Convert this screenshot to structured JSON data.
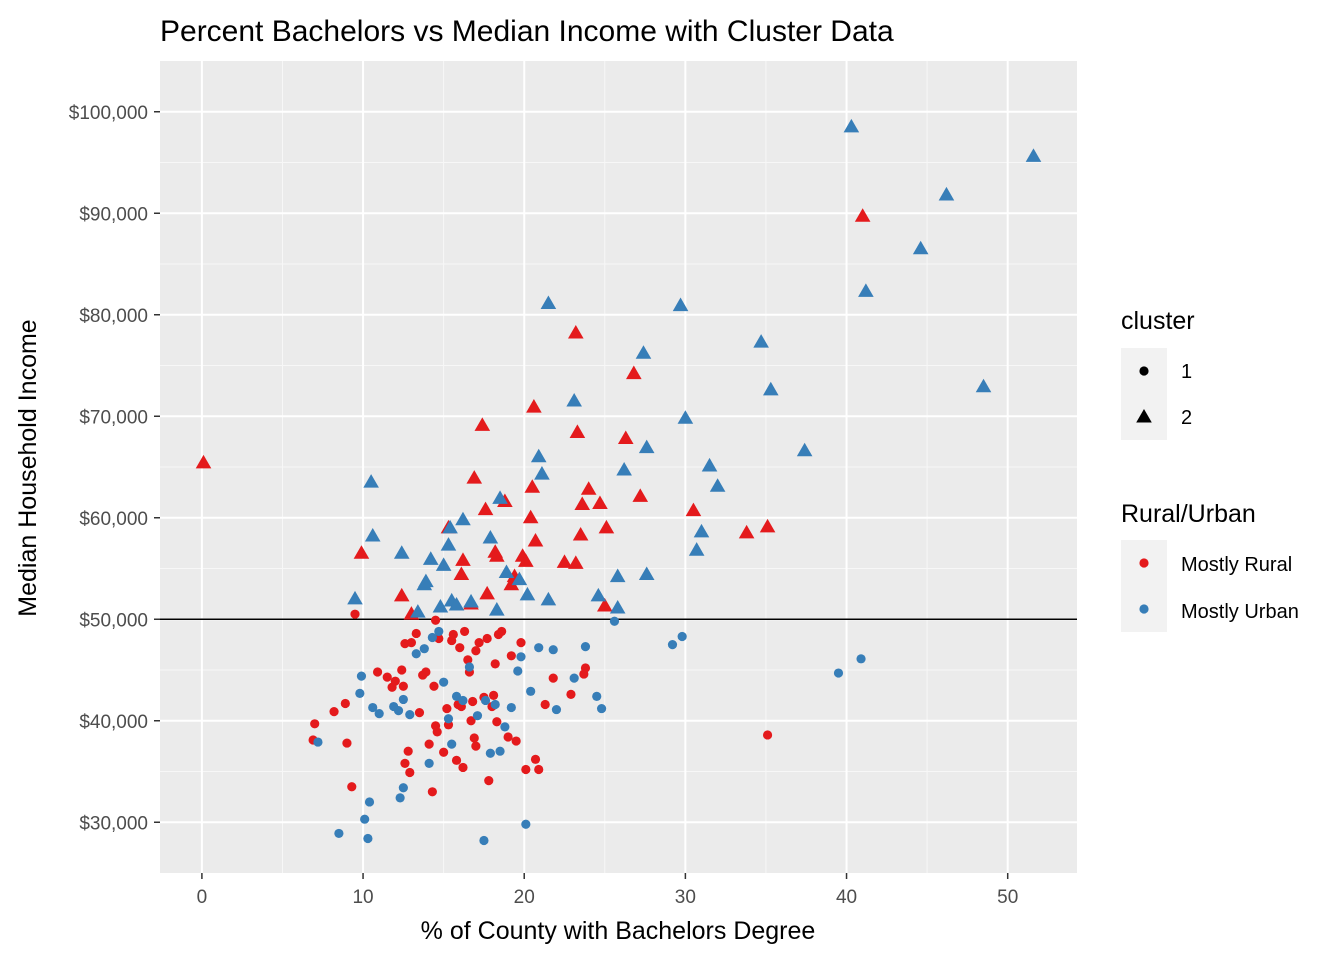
{
  "chart_data": {
    "type": "scatter",
    "title": "Percent Bachelors vs Median Income with Cluster Data",
    "xlabel": "% of County with Bachelors Degree",
    "ylabel": "Median Household Income",
    "xlim": [
      -2.6,
      54.3
    ],
    "ylim": [
      25000,
      105000
    ],
    "x_ticks": [
      0,
      10,
      20,
      30,
      40,
      50
    ],
    "x_tick_labels": [
      "0",
      "10",
      "20",
      "30",
      "40",
      "50"
    ],
    "y_ticks": [
      30000,
      40000,
      50000,
      60000,
      70000,
      80000,
      90000,
      100000
    ],
    "y_tick_labels": [
      "$30,000",
      "$40,000",
      "$50,000",
      "$60,000",
      "$70,000",
      "$80,000",
      "$90,000",
      "$100,000"
    ],
    "hline": 50000,
    "grid": true,
    "legend_placement": "right",
    "legends": [
      {
        "title": "cluster",
        "entries": [
          {
            "label": "1",
            "shape": "circle"
          },
          {
            "label": "2",
            "shape": "triangle"
          }
        ]
      },
      {
        "title": "Rural/Urban",
        "entries": [
          {
            "label": "Mostly Rural",
            "color": "#e41a1c"
          },
          {
            "label": "Mostly Urban",
            "color": "#377eb8"
          }
        ]
      }
    ],
    "series": [
      {
        "name": "Mostly Rural",
        "cluster": "1",
        "color": "#e41a1c",
        "shape": "circle",
        "points": [
          [
            7.0,
            39700
          ],
          [
            6.9,
            38100
          ],
          [
            8.2,
            40900
          ],
          [
            8.9,
            41700
          ],
          [
            9.0,
            37800
          ],
          [
            9.3,
            33500
          ],
          [
            9.5,
            50500
          ],
          [
            10.9,
            44800
          ],
          [
            11.5,
            44300
          ],
          [
            11.8,
            43300
          ],
          [
            12.0,
            43900
          ],
          [
            12.4,
            45000
          ],
          [
            12.5,
            43400
          ],
          [
            12.6,
            35800
          ],
          [
            12.8,
            37000
          ],
          [
            12.9,
            34900
          ],
          [
            12.6,
            47600
          ],
          [
            13.0,
            47700
          ],
          [
            13.3,
            48600
          ],
          [
            13.5,
            40800
          ],
          [
            13.7,
            44500
          ],
          [
            13.9,
            44800
          ],
          [
            14.1,
            37700
          ],
          [
            14.3,
            33000
          ],
          [
            14.4,
            43400
          ],
          [
            14.5,
            39500
          ],
          [
            14.6,
            38900
          ],
          [
            14.7,
            48100
          ],
          [
            14.5,
            49900
          ],
          [
            15.0,
            36900
          ],
          [
            15.2,
            41200
          ],
          [
            15.3,
            39600
          ],
          [
            15.5,
            47900
          ],
          [
            15.6,
            48500
          ],
          [
            15.8,
            36100
          ],
          [
            15.9,
            41600
          ],
          [
            16.1,
            41400
          ],
          [
            16.0,
            47200
          ],
          [
            16.2,
            35400
          ],
          [
            16.3,
            48800
          ],
          [
            16.5,
            46000
          ],
          [
            16.6,
            44800
          ],
          [
            16.7,
            40000
          ],
          [
            16.8,
            41900
          ],
          [
            16.9,
            38300
          ],
          [
            17.0,
            37500
          ],
          [
            17.0,
            46900
          ],
          [
            17.2,
            47700
          ],
          [
            17.5,
            42300
          ],
          [
            17.7,
            48100
          ],
          [
            17.8,
            34100
          ],
          [
            18.0,
            41400
          ],
          [
            18.1,
            42500
          ],
          [
            18.2,
            45600
          ],
          [
            18.3,
            39900
          ],
          [
            18.4,
            48500
          ],
          [
            18.6,
            48800
          ],
          [
            19.0,
            38400
          ],
          [
            19.2,
            46400
          ],
          [
            19.5,
            38000
          ],
          [
            19.8,
            47700
          ],
          [
            20.1,
            35200
          ],
          [
            20.7,
            36200
          ],
          [
            20.9,
            35200
          ],
          [
            21.3,
            41600
          ],
          [
            21.8,
            44200
          ],
          [
            22.9,
            42600
          ],
          [
            23.7,
            44600
          ],
          [
            23.8,
            45200
          ],
          [
            35.1,
            38600
          ]
        ]
      },
      {
        "name": "Mostly Urban",
        "cluster": "1",
        "color": "#377eb8",
        "shape": "circle",
        "points": [
          [
            7.2,
            37900
          ],
          [
            8.5,
            28900
          ],
          [
            9.8,
            42700
          ],
          [
            9.9,
            44400
          ],
          [
            10.1,
            30300
          ],
          [
            10.3,
            28400
          ],
          [
            10.4,
            32000
          ],
          [
            10.6,
            41300
          ],
          [
            11.0,
            40700
          ],
          [
            11.9,
            41400
          ],
          [
            12.2,
            41000
          ],
          [
            12.3,
            32400
          ],
          [
            12.5,
            42100
          ],
          [
            12.5,
            33400
          ],
          [
            12.9,
            40600
          ],
          [
            13.3,
            46600
          ],
          [
            13.8,
            47100
          ],
          [
            14.1,
            35800
          ],
          [
            14.3,
            48200
          ],
          [
            14.7,
            48800
          ],
          [
            15.0,
            43800
          ],
          [
            15.3,
            40200
          ],
          [
            15.5,
            37700
          ],
          [
            15.8,
            42400
          ],
          [
            16.2,
            42000
          ],
          [
            16.6,
            45300
          ],
          [
            17.1,
            40500
          ],
          [
            17.6,
            42000
          ],
          [
            17.9,
            36800
          ],
          [
            18.2,
            41600
          ],
          [
            18.5,
            37000
          ],
          [
            18.8,
            39400
          ],
          [
            19.2,
            41300
          ],
          [
            19.6,
            44900
          ],
          [
            19.8,
            46300
          ],
          [
            20.1,
            29800
          ],
          [
            20.4,
            42900
          ],
          [
            20.9,
            47200
          ],
          [
            21.8,
            47000
          ],
          [
            22.0,
            41100
          ],
          [
            23.1,
            44200
          ],
          [
            23.8,
            47300
          ],
          [
            24.5,
            42400
          ],
          [
            24.8,
            41200
          ],
          [
            25.6,
            49800
          ],
          [
            29.2,
            47500
          ],
          [
            29.8,
            48300
          ],
          [
            39.5,
            44700
          ],
          [
            40.9,
            46100
          ],
          [
            17.5,
            28200
          ]
        ]
      },
      {
        "name": "Mostly Rural",
        "cluster": "2",
        "color": "#e41a1c",
        "shape": "triangle",
        "points": [
          [
            0.1,
            65400
          ],
          [
            9.9,
            56500
          ],
          [
            12.4,
            52300
          ],
          [
            13.0,
            50500
          ],
          [
            15.3,
            59000
          ],
          [
            16.2,
            55800
          ],
          [
            16.1,
            54400
          ],
          [
            16.7,
            51500
          ],
          [
            16.9,
            63900
          ],
          [
            17.4,
            69100
          ],
          [
            17.6,
            60800
          ],
          [
            17.7,
            52500
          ],
          [
            18.2,
            56600
          ],
          [
            18.3,
            56200
          ],
          [
            18.8,
            61600
          ],
          [
            19.2,
            53400
          ],
          [
            19.4,
            54200
          ],
          [
            19.9,
            56200
          ],
          [
            20.1,
            55700
          ],
          [
            20.4,
            60000
          ],
          [
            20.5,
            63000
          ],
          [
            20.6,
            70900
          ],
          [
            20.7,
            57700
          ],
          [
            22.5,
            55600
          ],
          [
            23.2,
            55500
          ],
          [
            23.2,
            78200
          ],
          [
            23.3,
            68400
          ],
          [
            23.5,
            58300
          ],
          [
            23.6,
            61300
          ],
          [
            24.0,
            62800
          ],
          [
            24.7,
            61400
          ],
          [
            25.1,
            59000
          ],
          [
            25.0,
            51300
          ],
          [
            26.3,
            67800
          ],
          [
            26.8,
            74200
          ],
          [
            27.2,
            62100
          ],
          [
            30.5,
            60700
          ],
          [
            33.8,
            58500
          ],
          [
            35.1,
            59100
          ],
          [
            41.0,
            89700
          ]
        ]
      },
      {
        "name": "Mostly Urban",
        "cluster": "2",
        "color": "#377eb8",
        "shape": "triangle",
        "points": [
          [
            9.5,
            52000
          ],
          [
            10.5,
            63500
          ],
          [
            10.6,
            58200
          ],
          [
            12.4,
            56500
          ],
          [
            13.4,
            50700
          ],
          [
            13.8,
            53400
          ],
          [
            13.9,
            53700
          ],
          [
            14.2,
            55900
          ],
          [
            14.8,
            51200
          ],
          [
            15.0,
            55300
          ],
          [
            15.3,
            57300
          ],
          [
            15.4,
            59000
          ],
          [
            15.5,
            51800
          ],
          [
            15.8,
            51400
          ],
          [
            16.2,
            59800
          ],
          [
            16.7,
            51700
          ],
          [
            17.9,
            58000
          ],
          [
            18.3,
            50900
          ],
          [
            18.5,
            61900
          ],
          [
            18.9,
            54600
          ],
          [
            19.7,
            53900
          ],
          [
            20.2,
            52400
          ],
          [
            20.9,
            66000
          ],
          [
            21.1,
            64300
          ],
          [
            21.5,
            51900
          ],
          [
            21.5,
            81100
          ],
          [
            23.1,
            71500
          ],
          [
            24.6,
            52300
          ],
          [
            25.8,
            54200
          ],
          [
            25.8,
            51100
          ],
          [
            26.2,
            64700
          ],
          [
            27.4,
            76200
          ],
          [
            27.6,
            66900
          ],
          [
            27.6,
            54400
          ],
          [
            29.7,
            80900
          ],
          [
            30.0,
            69800
          ],
          [
            30.7,
            56800
          ],
          [
            31.0,
            58600
          ],
          [
            31.5,
            65100
          ],
          [
            32.0,
            63100
          ],
          [
            34.7,
            77300
          ],
          [
            35.3,
            72600
          ],
          [
            37.4,
            66600
          ],
          [
            40.3,
            98500
          ],
          [
            41.2,
            82300
          ],
          [
            44.6,
            86500
          ],
          [
            46.2,
            91800
          ],
          [
            48.5,
            72900
          ],
          [
            51.6,
            95600
          ]
        ]
      }
    ]
  }
}
